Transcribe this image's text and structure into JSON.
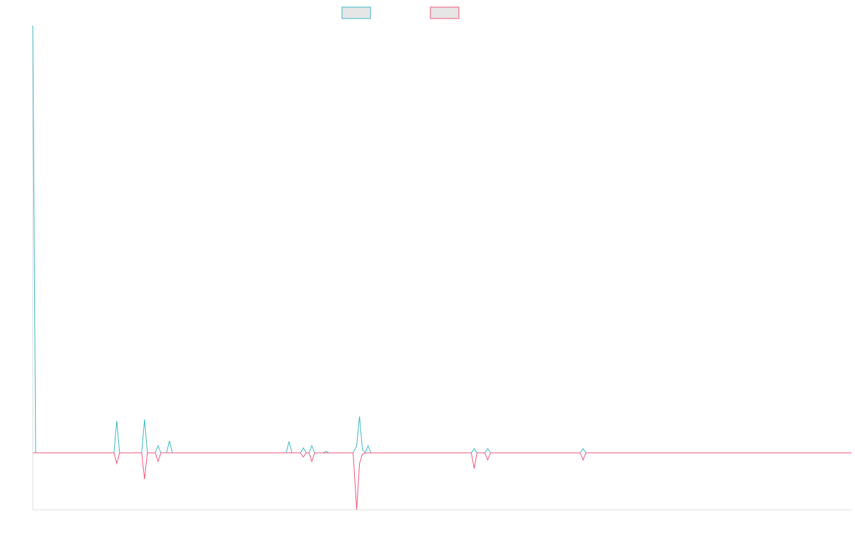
{
  "chart_data": {
    "type": "line",
    "x": [
      0,
      4,
      114,
      118,
      122,
      153,
      157,
      161,
      172,
      176,
      180,
      188,
      192,
      196,
      356,
      360,
      364,
      376,
      380,
      384,
      388,
      392,
      396,
      408,
      412,
      416,
      450,
      455,
      459,
      463,
      467,
      471,
      475,
      616,
      620,
      624,
      635,
      639,
      643,
      769,
      773,
      777,
      1150
    ],
    "series": [
      {
        "color": "#3cb9c1",
        "values": [
          600,
          0,
          0,
          45,
          0,
          0,
          47,
          0,
          0,
          10,
          0,
          0,
          17,
          0,
          0,
          16,
          0,
          0,
          7,
          0,
          0,
          10,
          0,
          0,
          2,
          0,
          0,
          10,
          51,
          5,
          0,
          10,
          0,
          0,
          6,
          0,
          0,
          6,
          0,
          0,
          6,
          0,
          0
        ]
      },
      {
        "color": "#f0557a",
        "values": [
          0,
          0,
          0,
          -15,
          0,
          0,
          -37,
          0,
          0,
          -12,
          0,
          0,
          0,
          0,
          0,
          0,
          0,
          0,
          -6,
          0,
          0,
          -12,
          0,
          0,
          0,
          0,
          0,
          -80,
          -15,
          -2,
          0,
          0,
          0,
          0,
          -22,
          0,
          0,
          -10,
          0,
          0,
          -10,
          0,
          0
        ]
      }
    ],
    "xlim": [
      0,
      1150
    ],
    "ylim": [
      -80,
      600
    ]
  }
}
